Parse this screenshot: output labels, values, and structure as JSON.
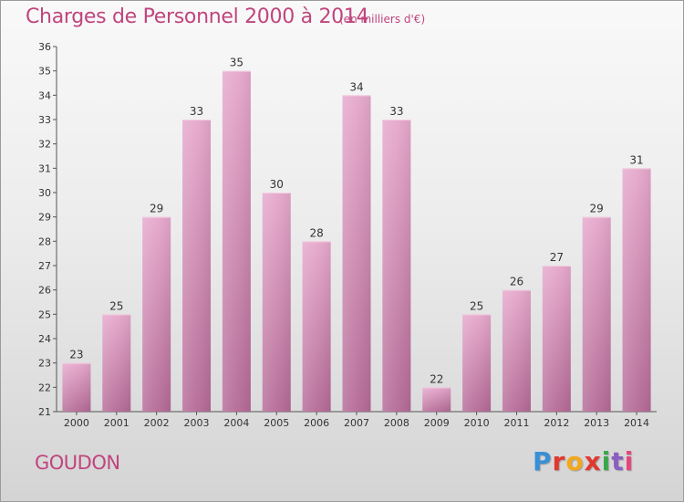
{
  "chart_data": {
    "type": "bar",
    "title": "Charges de Personnel 2000 à 2014",
    "subtitle": "(en milliers d'€)",
    "categories": [
      "2000",
      "2001",
      "2002",
      "2003",
      "2004",
      "2005",
      "2006",
      "2007",
      "2008",
      "2009",
      "2010",
      "2011",
      "2012",
      "2013",
      "2014"
    ],
    "values": [
      23,
      25,
      29,
      33,
      35,
      30,
      28,
      34,
      33,
      22,
      25,
      26,
      27,
      29,
      31
    ],
    "ylim": [
      21,
      36
    ],
    "yticks": [
      21,
      22,
      23,
      24,
      25,
      26,
      27,
      28,
      29,
      30,
      31,
      32,
      33,
      34,
      35,
      36
    ],
    "grid": false,
    "bar_color": "#d88bb6"
  },
  "commune": "GOUDON",
  "logo": {
    "letters": [
      "P",
      "r",
      "o",
      "x",
      "i",
      "t",
      "i"
    ]
  }
}
